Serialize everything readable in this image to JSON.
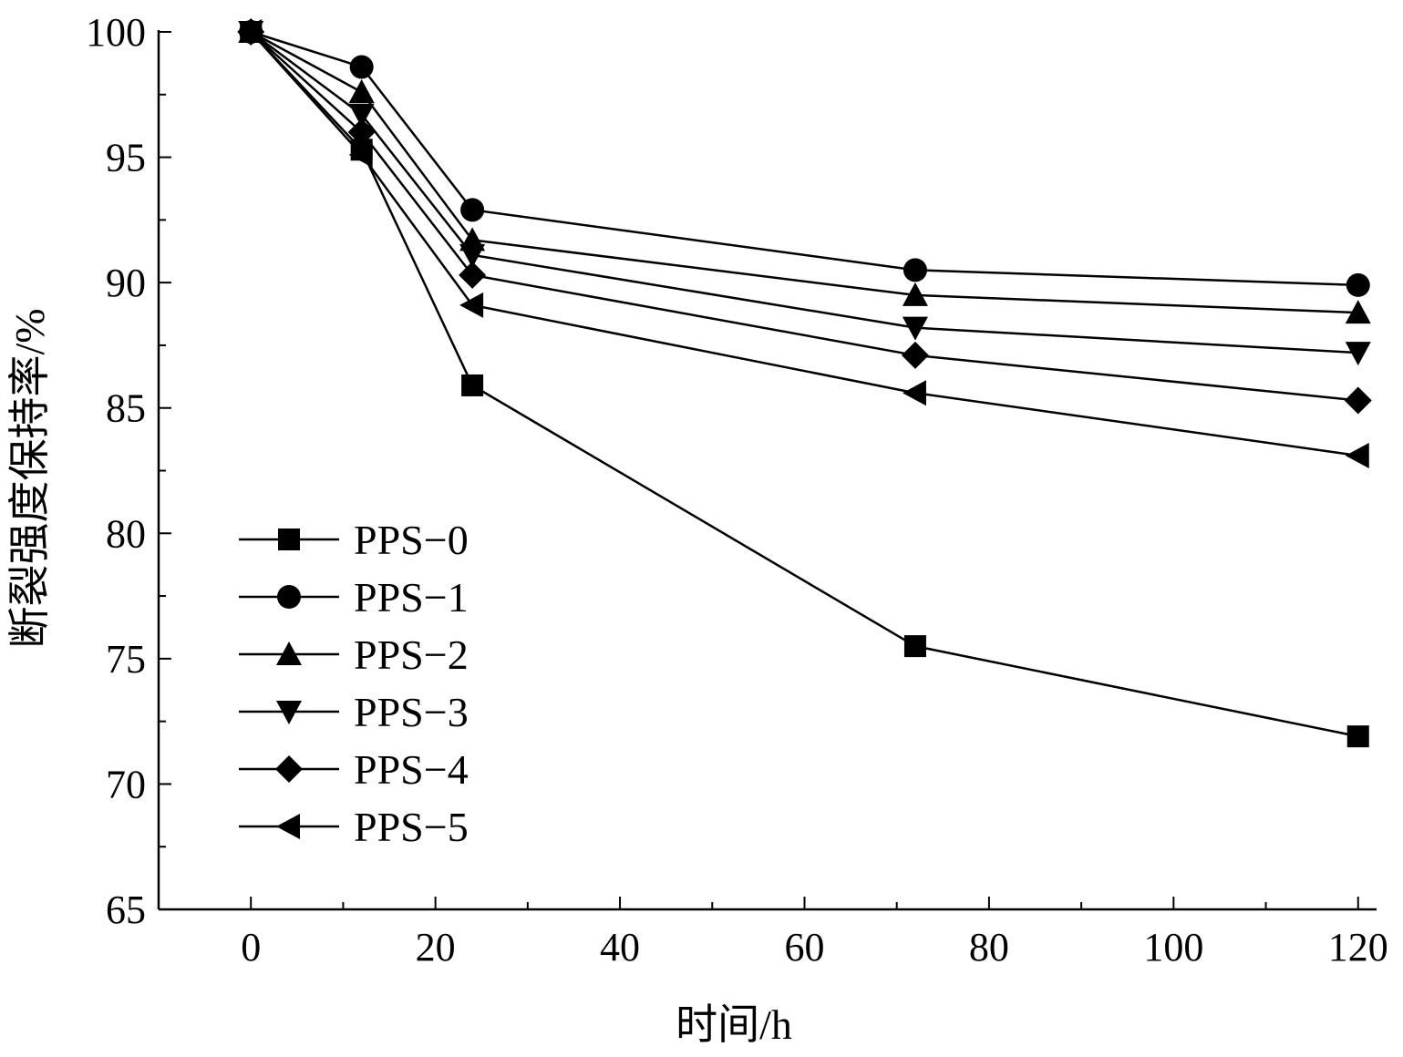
{
  "chart_data": {
    "type": "line",
    "xlabel": "时间/h",
    "ylabel": "断裂强度保持率/%",
    "xlim": [
      -10,
      122
    ],
    "ylim": [
      65,
      100
    ],
    "x_ticks": [
      0,
      20,
      40,
      60,
      80,
      100,
      120
    ],
    "y_ticks": [
      65,
      70,
      75,
      80,
      85,
      90,
      95,
      100
    ],
    "x": [
      0,
      12,
      24,
      72,
      120
    ],
    "legend_position": "bottom-left",
    "series": [
      {
        "name": "PPS−0",
        "marker": "square",
        "values": [
          100,
          95.3,
          85.9,
          75.5,
          71.9
        ]
      },
      {
        "name": "PPS−1",
        "marker": "circle",
        "values": [
          100,
          98.6,
          92.9,
          90.5,
          89.9
        ]
      },
      {
        "name": "PPS−2",
        "marker": "triangle-up",
        "values": [
          100,
          97.6,
          91.7,
          89.5,
          88.8
        ]
      },
      {
        "name": "PPS−3",
        "marker": "triangle-down",
        "values": [
          100,
          96.7,
          91.1,
          88.2,
          87.2
        ]
      },
      {
        "name": "PPS−4",
        "marker": "diamond",
        "values": [
          100,
          96.0,
          90.3,
          87.1,
          85.3
        ]
      },
      {
        "name": "PPS−5",
        "marker": "triangle-left",
        "values": [
          100,
          95.1,
          89.1,
          85.6,
          83.1
        ]
      }
    ],
    "colors": {
      "line": "#000000",
      "marker": "#000000",
      "axis": "#000000"
    }
  }
}
